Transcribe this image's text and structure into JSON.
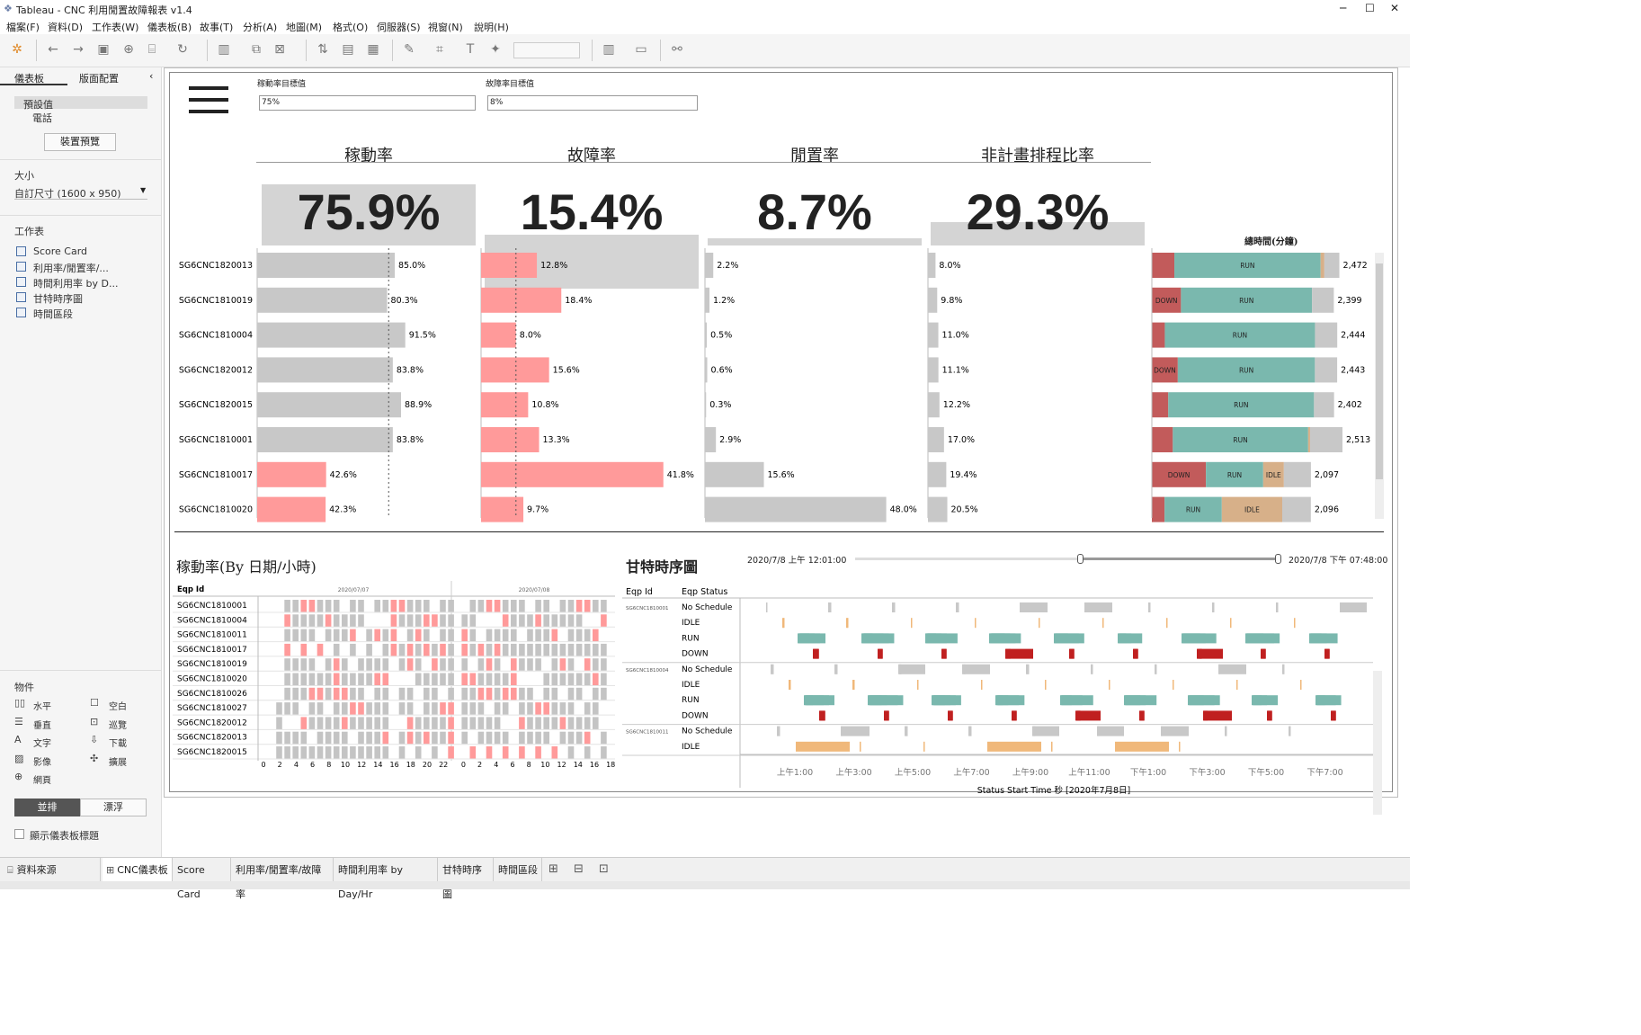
{
  "window": {
    "title": "Tableau - CNC 利用閒置故障報表 v1.4"
  },
  "menu": [
    "檔案(F)",
    "資料(D)",
    "工作表(W)",
    "儀表板(B)",
    "故事(T)",
    "分析(A)",
    "地圖(M)",
    "格式(O)",
    "伺服器(S)",
    "視窗(N)",
    "說明(H)"
  ],
  "sidebar": {
    "tab_dashboard": "儀表板",
    "tab_layout": "版面配置",
    "device_default": "預設值",
    "device_phone": "電話",
    "device_preview": "裝置預覽",
    "size_header": "大小",
    "size_value": "自訂尺寸 (1600 x 950)",
    "sheets_header": "工作表",
    "sheets": [
      "Score Card",
      "利用率/閒置率/...",
      "時間利用率 by D...",
      "甘特時序圖",
      "時間區段"
    ],
    "objects_header": "物件",
    "objects": [
      "水平",
      "空白",
      "垂直",
      "巡覽",
      "文字",
      "下載",
      "影像",
      "擴展",
      "網頁"
    ],
    "tiled": "並排",
    "floating": "漂浮",
    "show_title": "顯示儀表板標題"
  },
  "filters": {
    "util_label": "稼動率目標值",
    "util_value": "75%",
    "fail_label": "故障率目標值",
    "fail_value": "8%"
  },
  "kpis": [
    {
      "title": "稼動率",
      "value": "75.9%"
    },
    {
      "title": "故障率",
      "value": "15.4%"
    },
    {
      "title": "閒置率",
      "value": "8.7%"
    },
    {
      "title": "非計畫排程比率",
      "value": "29.3%"
    }
  ],
  "total_time_title": "總時間(分鐘)",
  "chart_data": {
    "type": "bar",
    "categories": [
      "SG6CNC1820013",
      "SG6CNC1810019",
      "SG6CNC1810004",
      "SG6CNC1820012",
      "SG6CNC1820015",
      "SG6CNC1810001",
      "SG6CNC1810017",
      "SG6CNC1810020"
    ],
    "series": [
      {
        "name": "稼動率",
        "labels": [
          "85.0%",
          "80.3%",
          "91.5%",
          "83.8%",
          "88.9%",
          "83.8%",
          "42.6%",
          "42.3%"
        ],
        "values": [
          85.0,
          80.3,
          91.5,
          83.8,
          88.9,
          83.8,
          42.6,
          42.3
        ]
      },
      {
        "name": "故障率",
        "labels": [
          "12.8%",
          "18.4%",
          "8.0%",
          "15.6%",
          "10.8%",
          "13.3%",
          "41.8%",
          "9.7%"
        ],
        "values": [
          12.8,
          18.4,
          8.0,
          15.6,
          10.8,
          13.3,
          41.8,
          9.7
        ]
      },
      {
        "name": "閒置率",
        "labels": [
          "2.2%",
          "1.2%",
          "0.5%",
          "0.6%",
          "0.3%",
          "2.9%",
          "15.6%",
          "48.0%"
        ],
        "values": [
          2.2,
          1.2,
          0.5,
          0.6,
          0.3,
          2.9,
          15.6,
          48.0
        ]
      },
      {
        "name": "非計畫排程比率",
        "labels": [
          "8.0%",
          "9.8%",
          "11.0%",
          "11.1%",
          "12.2%",
          "17.0%",
          "19.4%",
          "20.5%"
        ],
        "values": [
          8.0,
          9.8,
          11.0,
          11.1,
          12.2,
          17.0,
          19.4,
          20.5
        ]
      }
    ],
    "total_minutes": {
      "labels": [
        "2,472",
        "2,399",
        "2,444",
        "2,443",
        "2,402",
        "2,513",
        "2,097",
        "2,096"
      ],
      "values": [
        2472,
        2399,
        2444,
        2443,
        2402,
        2513,
        2097,
        2096
      ]
    },
    "status_segments": [
      [
        {
          "s": "DOWN",
          "v": 0.12,
          "t": ""
        },
        {
          "s": "RUN",
          "v": 0.78,
          "t": "RUN"
        },
        {
          "s": "IDLE",
          "v": 0.02,
          "t": ""
        },
        {
          "s": "NS",
          "v": 0.08,
          "t": ""
        }
      ],
      [
        {
          "s": "DOWN",
          "v": 0.16,
          "t": "DOWN"
        },
        {
          "s": "RUN",
          "v": 0.72,
          "t": "RUN"
        },
        {
          "s": "NS",
          "v": 0.12,
          "t": ""
        }
      ],
      [
        {
          "s": "DOWN",
          "v": 0.07,
          "t": ""
        },
        {
          "s": "RUN",
          "v": 0.81,
          "t": "RUN"
        },
        {
          "s": "NS",
          "v": 0.12,
          "t": ""
        }
      ],
      [
        {
          "s": "DOWN",
          "v": 0.14,
          "t": "DOWN"
        },
        {
          "s": "RUN",
          "v": 0.74,
          "t": "RUN"
        },
        {
          "s": "NS",
          "v": 0.12,
          "t": ""
        }
      ],
      [
        {
          "s": "DOWN",
          "v": 0.09,
          "t": ""
        },
        {
          "s": "RUN",
          "v": 0.8,
          "t": "RUN"
        },
        {
          "s": "NS",
          "v": 0.11,
          "t": ""
        }
      ],
      [
        {
          "s": "DOWN",
          "v": 0.11,
          "t": ""
        },
        {
          "s": "RUN",
          "v": 0.71,
          "t": "RUN"
        },
        {
          "s": "IDLE",
          "v": 0.01,
          "t": ""
        },
        {
          "s": "NS",
          "v": 0.17,
          "t": ""
        }
      ],
      [
        {
          "s": "DOWN",
          "v": 0.34,
          "t": "DOWN"
        },
        {
          "s": "RUN",
          "v": 0.36,
          "t": "RUN"
        },
        {
          "s": "IDLE",
          "v": 0.13,
          "t": "IDLE"
        },
        {
          "s": "NS",
          "v": 0.17,
          "t": ""
        }
      ],
      [
        {
          "s": "DOWN",
          "v": 0.08,
          "t": ""
        },
        {
          "s": "RUN",
          "v": 0.36,
          "t": "RUN"
        },
        {
          "s": "IDLE",
          "v": 0.38,
          "t": "IDLE"
        },
        {
          "s": "NS",
          "v": 0.18,
          "t": ""
        }
      ]
    ],
    "target_util": 75,
    "target_fail": 8
  },
  "heatmap": {
    "title": "稼動率(By 日期/小時)",
    "col_header": "Eqp Id",
    "date1": "2020/07/07",
    "date2": "2020/07/08",
    "rows": [
      "SG6CNC1810001",
      "SG6CNC1810004",
      "SG6CNC1810011",
      "SG6CNC1810017",
      "SG6CNC1810019",
      "SG6CNC1810020",
      "SG6CNC1810026",
      "SG6CNC1810027",
      "SG6CNC1820012",
      "SG6CNC1820013",
      "SG6CNC1820015"
    ],
    "x_ticks": [
      "0",
      "2",
      "4",
      "6",
      "8",
      "10",
      "12",
      "14",
      "16",
      "18",
      "20",
      "22",
      "0",
      "2",
      "4",
      "6",
      "8",
      "10",
      "12",
      "14",
      "16",
      "18"
    ]
  },
  "gantt": {
    "title": "甘特時序圖",
    "range_start": "2020/7/8 上午 12:01:00",
    "range_end": "2020/7/8 下午 07:48:00",
    "col1": "Eqp Id",
    "col2": "Eqp Status",
    "groups": [
      {
        "id": "SG6CNC1810001",
        "statuses": [
          "No Schedule",
          "IDLE",
          "RUN",
          "DOWN"
        ]
      },
      {
        "id": "SG6CNC1810004",
        "statuses": [
          "No Schedule",
          "IDLE",
          "RUN",
          "DOWN"
        ]
      },
      {
        "id": "SG6CNC1810011",
        "statuses": [
          "No Schedule",
          "IDLE"
        ]
      }
    ],
    "x_ticks": [
      "上午1:00",
      "上午3:00",
      "上午5:00",
      "上午7:00",
      "上午9:00",
      "上午11:00",
      "下午1:00",
      "下午3:00",
      "下午5:00",
      "下午7:00"
    ],
    "x_title": "Status Start Time 秒 [2020年7月8日]"
  },
  "status_tabs": [
    "資料來源",
    "CNC儀表板",
    "Score Card",
    "利用率/閒置率/故障率",
    "時間利用率 by Day/Hr",
    "甘特時序圖",
    "時間區段"
  ],
  "colors": {
    "bar_gray": "#c8c8c8",
    "bar_red": "#ff9a9a",
    "run": "#7ab8ae",
    "down": "#c25b5b",
    "idle": "#d7b089",
    "ns": "#c8c8c8"
  }
}
